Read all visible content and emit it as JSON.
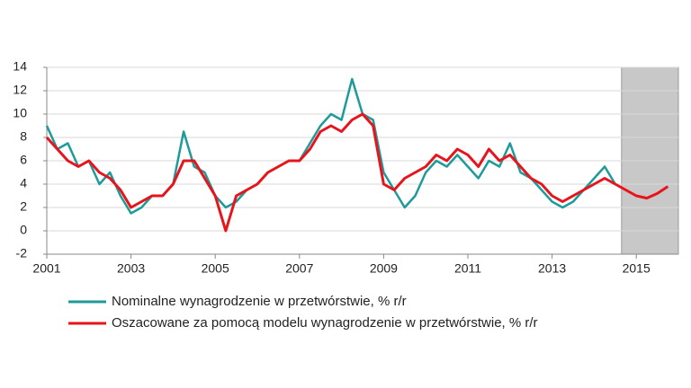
{
  "chart_data": {
    "type": "line",
    "x": [
      2001,
      2001.25,
      2001.5,
      2001.75,
      2002,
      2002.25,
      2002.5,
      2002.75,
      2003,
      2003.25,
      2003.5,
      2003.75,
      2004,
      2004.25,
      2004.5,
      2004.75,
      2005,
      2005.25,
      2005.5,
      2005.75,
      2006,
      2006.25,
      2006.5,
      2006.75,
      2007,
      2007.25,
      2007.5,
      2007.75,
      2008,
      2008.25,
      2008.5,
      2008.75,
      2009,
      2009.25,
      2009.5,
      2009.75,
      2010,
      2010.25,
      2010.5,
      2010.75,
      2011,
      2011.25,
      2011.5,
      2011.75,
      2012,
      2012.25,
      2012.5,
      2012.75,
      2013,
      2013.25,
      2013.5,
      2013.75,
      2014,
      2014.25,
      2014.5,
      2014.75,
      2015,
      2015.25,
      2015.5,
      2015.75
    ],
    "series": [
      {
        "name": "Nominalne wynagrodzenie w przetwórstwie, % r/r",
        "color": "#1f9a9a",
        "values": [
          9.0,
          7.0,
          7.5,
          5.5,
          6.0,
          4.0,
          5.0,
          3.0,
          1.5,
          2.0,
          3.0,
          3.0,
          4.0,
          8.5,
          5.5,
          5.0,
          3.0,
          2.0,
          2.5,
          3.5,
          4.0,
          5.0,
          5.5,
          6.0,
          6.0,
          7.5,
          9.0,
          10.0,
          9.5,
          13.0,
          10.0,
          9.5,
          5.0,
          3.5,
          2.0,
          3.0,
          5.0,
          6.0,
          5.5,
          6.5,
          5.5,
          4.5,
          6.0,
          5.5,
          7.5,
          5.0,
          4.5,
          3.5,
          2.5,
          2.0,
          2.5,
          3.5,
          4.5,
          5.5,
          4.0,
          null,
          null,
          null,
          null,
          null
        ]
      },
      {
        "name": "Oszacowane za pomocą modelu wynagrodzenie w przetwórstwie, % r/r",
        "color": "#e8141b",
        "values": [
          8.0,
          7.0,
          6.0,
          5.5,
          6.0,
          5.0,
          4.5,
          3.5,
          2.0,
          2.5,
          3.0,
          3.0,
          4.0,
          6.0,
          6.0,
          4.5,
          3.0,
          0.0,
          3.0,
          3.5,
          4.0,
          5.0,
          5.5,
          6.0,
          6.0,
          7.0,
          8.5,
          9.0,
          8.5,
          9.5,
          10.0,
          9.0,
          4.0,
          3.5,
          4.5,
          5.0,
          5.5,
          6.5,
          6.0,
          7.0,
          6.5,
          5.5,
          7.0,
          6.0,
          6.5,
          5.5,
          4.5,
          4.0,
          3.0,
          2.5,
          3.0,
          3.5,
          4.0,
          4.5,
          4.0,
          3.5,
          3.0,
          2.8,
          3.2,
          3.8
        ]
      }
    ],
    "xlim": [
      2001,
      2016
    ],
    "xticks": [
      2001,
      2003,
      2005,
      2007,
      2009,
      2011,
      2013,
      2015
    ],
    "ylim": [
      -2,
      14
    ],
    "yticks": [
      -2,
      0,
      2,
      4,
      6,
      8,
      10,
      12,
      14
    ],
    "grid": true,
    "shaded_span": [
      2014.65,
      2016
    ],
    "shade_color": "#c8c8c8",
    "legend": "bottom"
  }
}
